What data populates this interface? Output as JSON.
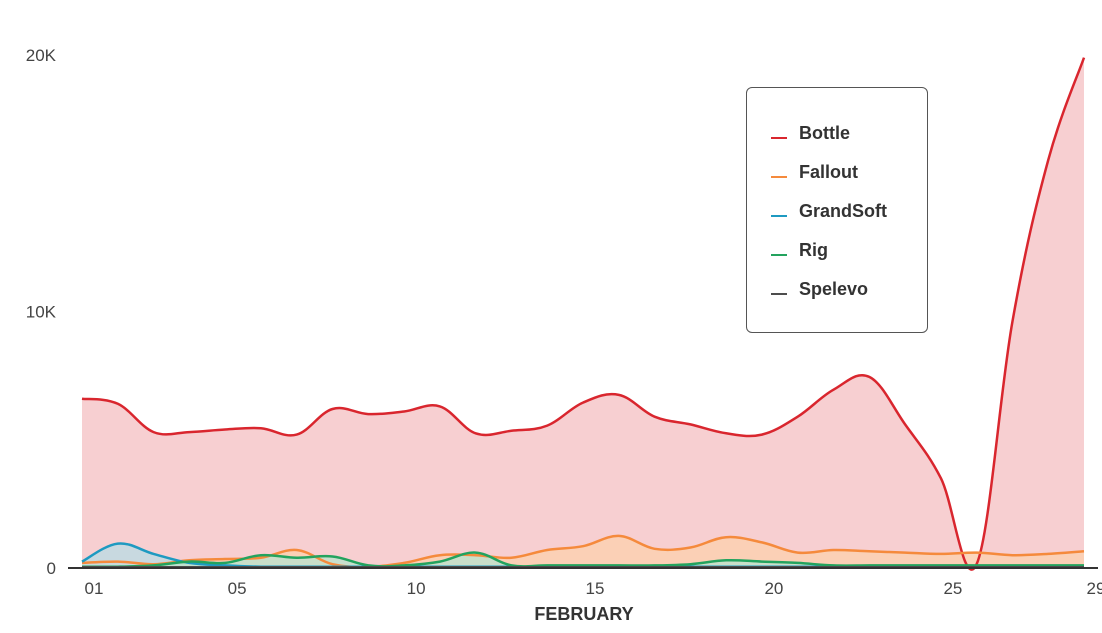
{
  "chart_data": {
    "type": "area",
    "xlabel": "FEBRUARY",
    "ylabel": "",
    "x": [
      "01",
      "02",
      "03",
      "04",
      "05",
      "06",
      "07",
      "08",
      "09",
      "10",
      "11",
      "12",
      "13",
      "14",
      "15",
      "16",
      "17",
      "18",
      "19",
      "20",
      "21",
      "22",
      "23",
      "24",
      "25",
      "26",
      "27",
      "28",
      "29"
    ],
    "x_ticks": [
      "01",
      "05",
      "10",
      "15",
      "20",
      "25",
      "29"
    ],
    "y_ticks": [
      {
        "value": 0,
        "label": "0"
      },
      {
        "value": 10000,
        "label": "10K"
      },
      {
        "value": 20000,
        "label": "20K"
      }
    ],
    "ylim": [
      0,
      20000
    ],
    "grid": false,
    "legend_position": "top-right",
    "series": [
      {
        "name": "Bottle",
        "color": "#d9262e",
        "fill": "#f7cfd1",
        "values": [
          6600,
          6400,
          5300,
          5300,
          5400,
          5450,
          5200,
          6200,
          6000,
          6100,
          6300,
          5250,
          5350,
          5550,
          6450,
          6750,
          5900,
          5600,
          5250,
          5200,
          5900,
          6950,
          7450,
          5600,
          3500,
          150,
          9600,
          15900,
          19900
        ]
      },
      {
        "name": "Fallout",
        "color": "#f58a3c",
        "fill": "#fbd0b2",
        "values": [
          200,
          250,
          150,
          300,
          350,
          400,
          700,
          150,
          50,
          200,
          500,
          500,
          400,
          700,
          850,
          1250,
          750,
          800,
          1200,
          1000,
          600,
          700,
          650,
          600,
          550,
          600,
          500,
          550,
          650
        ]
      },
      {
        "name": "GrandSoft",
        "color": "#1e9ac1",
        "fill": "#bfdbe3",
        "values": [
          250,
          950,
          550,
          200,
          100,
          50,
          50,
          50,
          50,
          50,
          50,
          50,
          50,
          50,
          50,
          50,
          50,
          50,
          50,
          50,
          50,
          50,
          50,
          50,
          50,
          50,
          50,
          50,
          50
        ]
      },
      {
        "name": "Rig",
        "color": "#23a35e",
        "fill": "#bfe2cc",
        "values": [
          50,
          50,
          100,
          250,
          200,
          500,
          400,
          450,
          100,
          100,
          250,
          600,
          100,
          100,
          100,
          100,
          100,
          150,
          300,
          250,
          200,
          100,
          100,
          100,
          100,
          100,
          100,
          100,
          100
        ]
      },
      {
        "name": "Spelevo",
        "color": "#4d4d4d",
        "fill": "#d0d0d0",
        "values": [
          30,
          30,
          30,
          30,
          30,
          30,
          30,
          30,
          30,
          30,
          30,
          30,
          30,
          30,
          30,
          30,
          30,
          30,
          30,
          30,
          30,
          30,
          30,
          30,
          30,
          30,
          30,
          30,
          30
        ]
      }
    ]
  }
}
